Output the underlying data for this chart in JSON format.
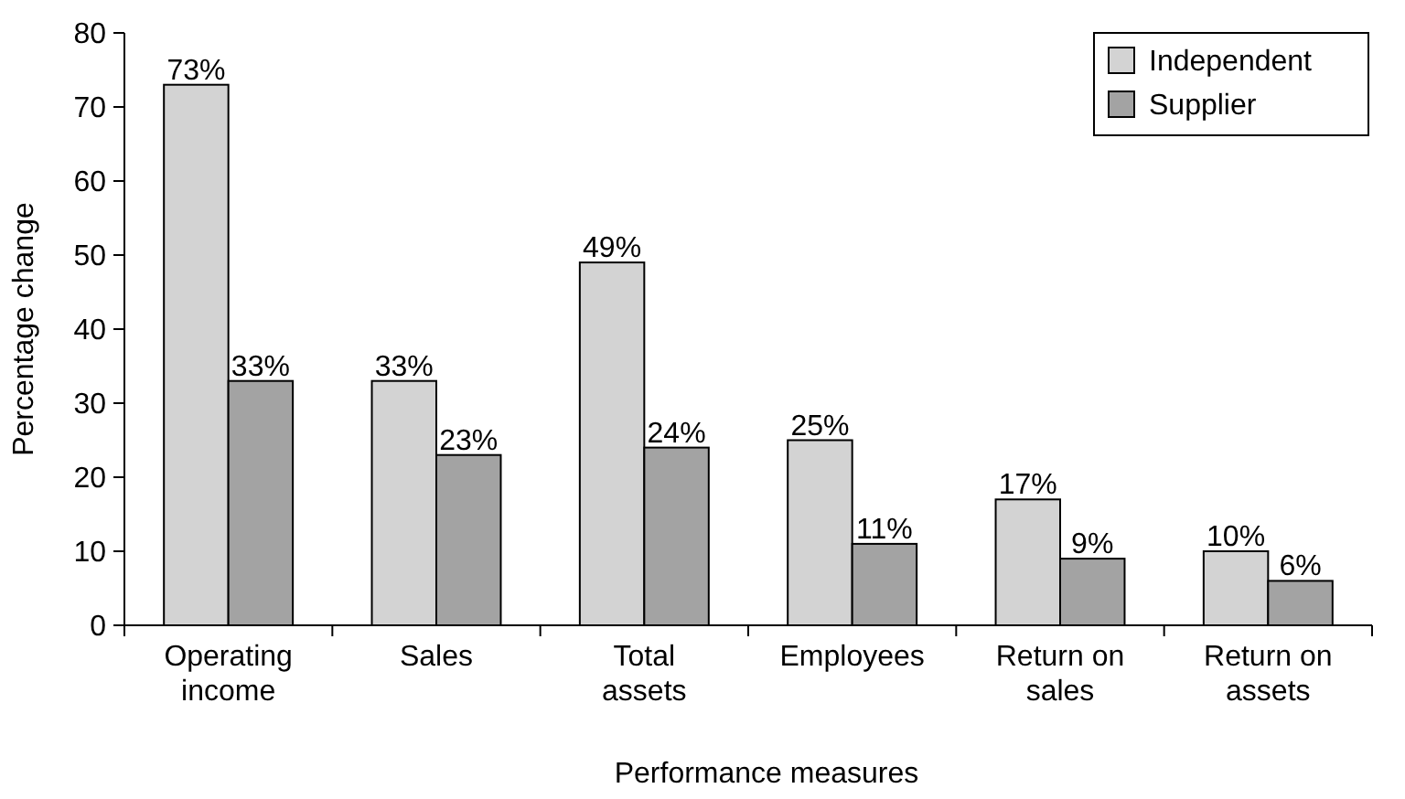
{
  "chart_data": {
    "type": "bar",
    "xlabel": "Performance measures",
    "ylabel": "Percentage change",
    "categories": [
      "Operating income",
      "Sales",
      "Total assets",
      "Employees",
      "Return on sales",
      "Return on assets"
    ],
    "series": [
      {
        "name": "Independent",
        "color": "#d3d3d3",
        "values": [
          73,
          33,
          49,
          25,
          17,
          10
        ],
        "value_labels": [
          "73%",
          "33%",
          "49%",
          "25%",
          "17%",
          "10%"
        ]
      },
      {
        "name": "Supplier",
        "color": "#a3a3a3",
        "values": [
          33,
          23,
          24,
          11,
          9,
          6
        ],
        "value_labels": [
          "33%",
          "23%",
          "24%",
          "11%",
          "9%",
          "6%"
        ]
      }
    ],
    "ylim": [
      0,
      80
    ],
    "yticks": [
      0,
      10,
      20,
      30,
      40,
      50,
      60,
      70,
      80
    ],
    "grid": false,
    "legend": "top right"
  }
}
